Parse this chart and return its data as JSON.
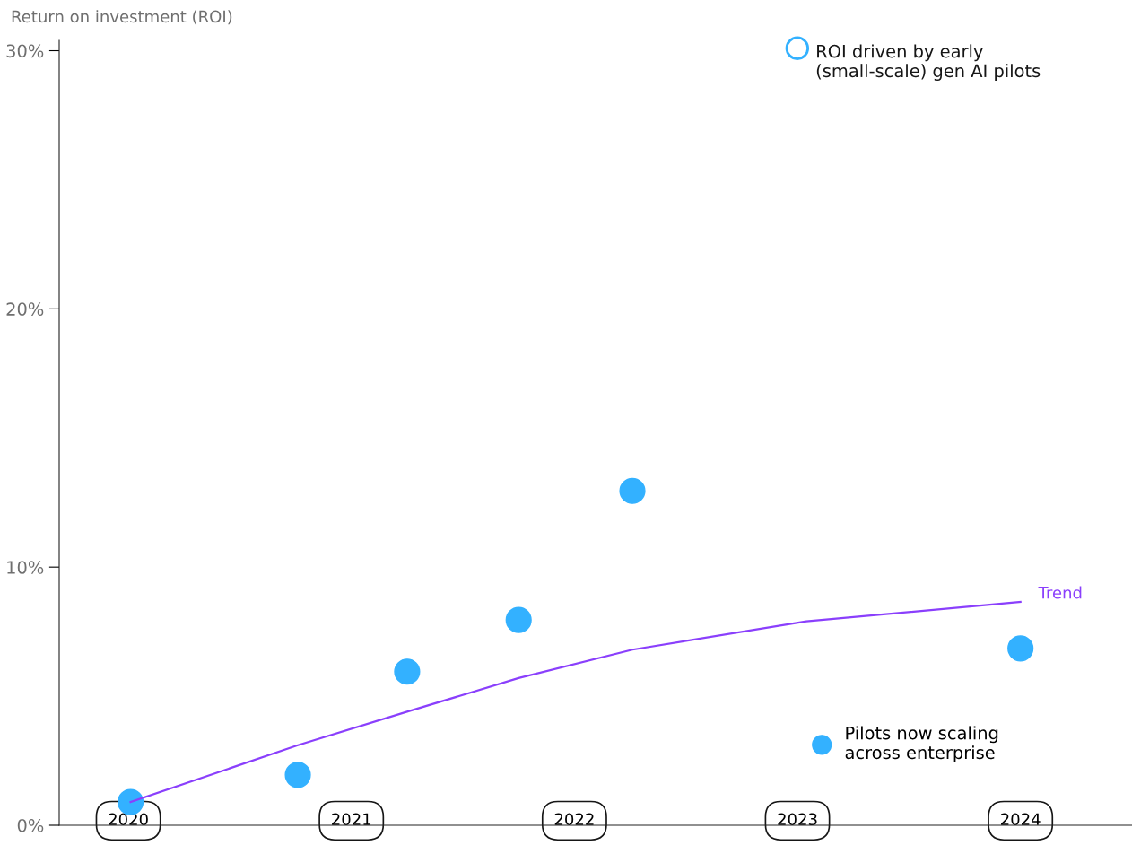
{
  "chart_data": {
    "type": "scatter",
    "ylabel": "Return on investment (ROI)",
    "xlim": [
      2019.69,
      2024.5
    ],
    "xticks": [
      {
        "value": 2020,
        "label": "2020"
      },
      {
        "value": 2021,
        "label": "2021"
      },
      {
        "value": 2022,
        "label": "2022"
      },
      {
        "value": 2023,
        "label": "2023"
      },
      {
        "value": 2024,
        "label": "2024"
      }
    ],
    "ylim": [
      0,
      30.4
    ],
    "yticks": [
      {
        "value": 0,
        "label": "0%"
      },
      {
        "value": 10,
        "label": "10%"
      },
      {
        "value": 20,
        "label": "20%"
      },
      {
        "value": 30,
        "label": "30%"
      }
    ],
    "grid": false,
    "legend": "bottom right",
    "annotations": [
      "ROI driven by early\n(small-scale) gen AI pilots"
    ],
    "series": [
      {
        "name": "Pilots now scaling\nacross enterprise",
        "marker": "circle",
        "color": "#33b1ff",
        "x": [
          2020.01,
          2020.76,
          2021.25,
          2021.75,
          2022.26,
          2024.0
        ],
        "values": [
          0.9,
          1.95,
          5.95,
          7.95,
          12.95,
          6.85
        ]
      },
      {
        "name": "Trend",
        "type": "line",
        "marker": "none",
        "color": "#8a3ffc",
        "line_style": "solid",
        "x": [
          2020.01,
          2020.76,
          2021.25,
          2021.75,
          2022.26,
          2023.04,
          2024.0
        ],
        "values": [
          0.9,
          3.1,
          4.4,
          5.7,
          6.8,
          7.9,
          8.65
        ]
      }
    ]
  }
}
